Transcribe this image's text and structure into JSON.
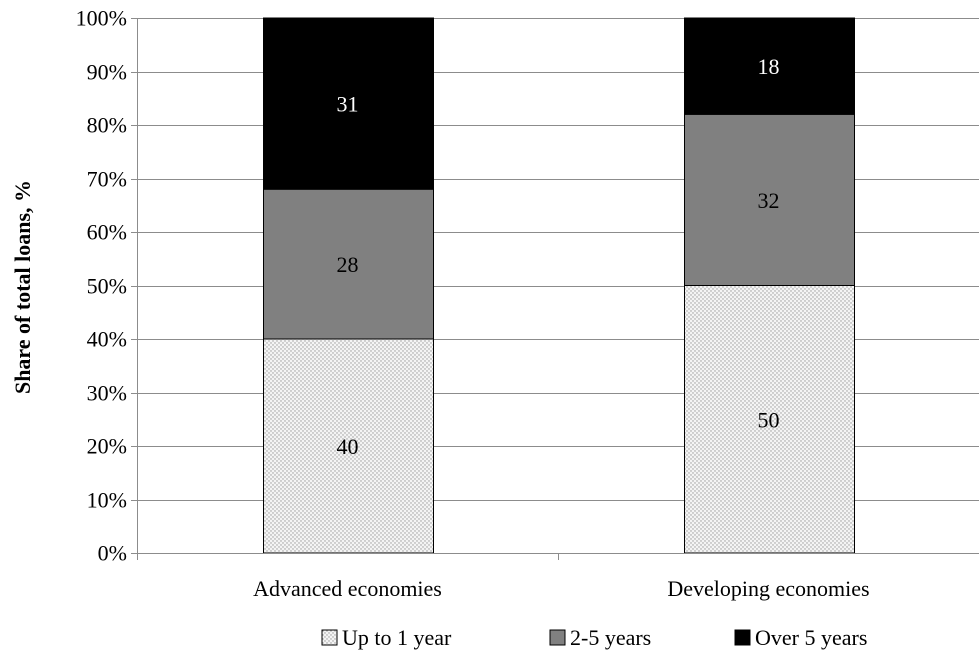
{
  "chart_data": {
    "type": "stacked-bar",
    "categories": [
      "Advanced economies",
      "Developing economies"
    ],
    "series": [
      {
        "name": "Up to 1 year",
        "values": [
          40,
          50
        ],
        "color": "#e6e6e6",
        "pattern": "dots"
      },
      {
        "name": "2-5 years",
        "values": [
          28,
          32
        ],
        "color": "#808080",
        "pattern": "solid"
      },
      {
        "name": "Over 5 years",
        "values": [
          31,
          18
        ],
        "color": "#000000",
        "pattern": "solid"
      }
    ],
    "ylabel": "Share of total loans, %",
    "xlabel": "",
    "ylim": [
      0,
      100
    ],
    "yticks": [
      "0%",
      "10%",
      "20%",
      "30%",
      "40%",
      "50%",
      "60%",
      "70%",
      "80%",
      "90%",
      "100%"
    ],
    "grid": true,
    "legend_position": "bottom"
  }
}
